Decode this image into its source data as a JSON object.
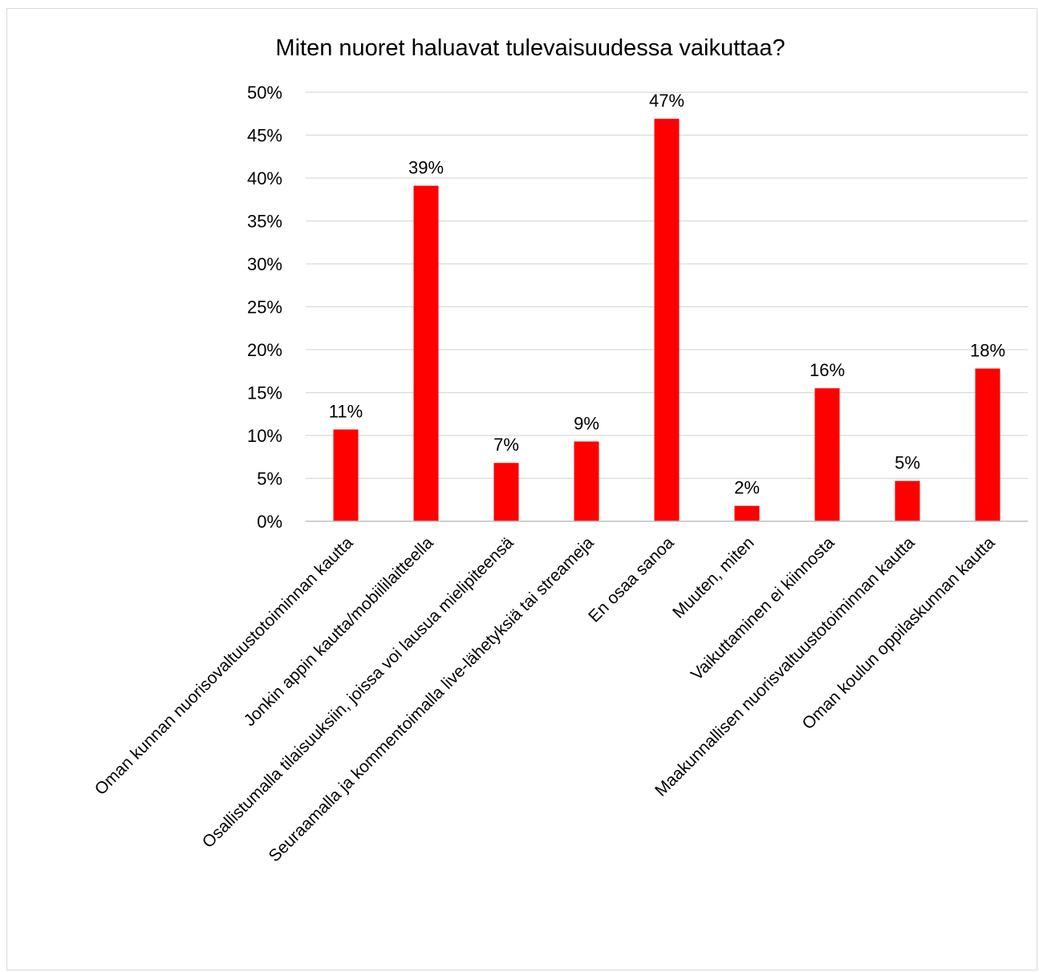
{
  "chart_data": {
    "type": "bar",
    "title": "Miten nuoret haluavat tulevaisuudessa vaikuttaa?",
    "xlabel": "",
    "ylabel": "",
    "ylim": [
      0,
      50
    ],
    "yticks": [
      "0%",
      "5%",
      "10%",
      "15%",
      "20%",
      "25%",
      "30%",
      "35%",
      "40%",
      "45%",
      "50%"
    ],
    "grid": true,
    "legend": "none",
    "bar_color": "#ff0000",
    "categories": [
      "Oman kunnan nuorisovaltuustotoiminnan kautta",
      "Jonkin appin kautta/mobiililaitteella",
      "Osallistumalla tilaisuuksiin, joissa voi lausua mielipiteensä",
      "Seuraamalla ja kommentoimalla live-lähetyksiä tai streameja",
      "En osaa sanoa",
      "Muuten, miten",
      "Vaikuttaminen ei kiinnosta",
      "Maakunnallisen nuorisvaltuustotoiminnan kautta",
      "Oman koulun oppilaskunnan kautta"
    ],
    "values": [
      10.7,
      39.1,
      6.8,
      9.3,
      46.9,
      1.8,
      15.5,
      4.7,
      17.8
    ],
    "data_labels": [
      "11%",
      "39%",
      "7%",
      "9%",
      "47%",
      "2%",
      "16%",
      "5%",
      "18%"
    ]
  }
}
